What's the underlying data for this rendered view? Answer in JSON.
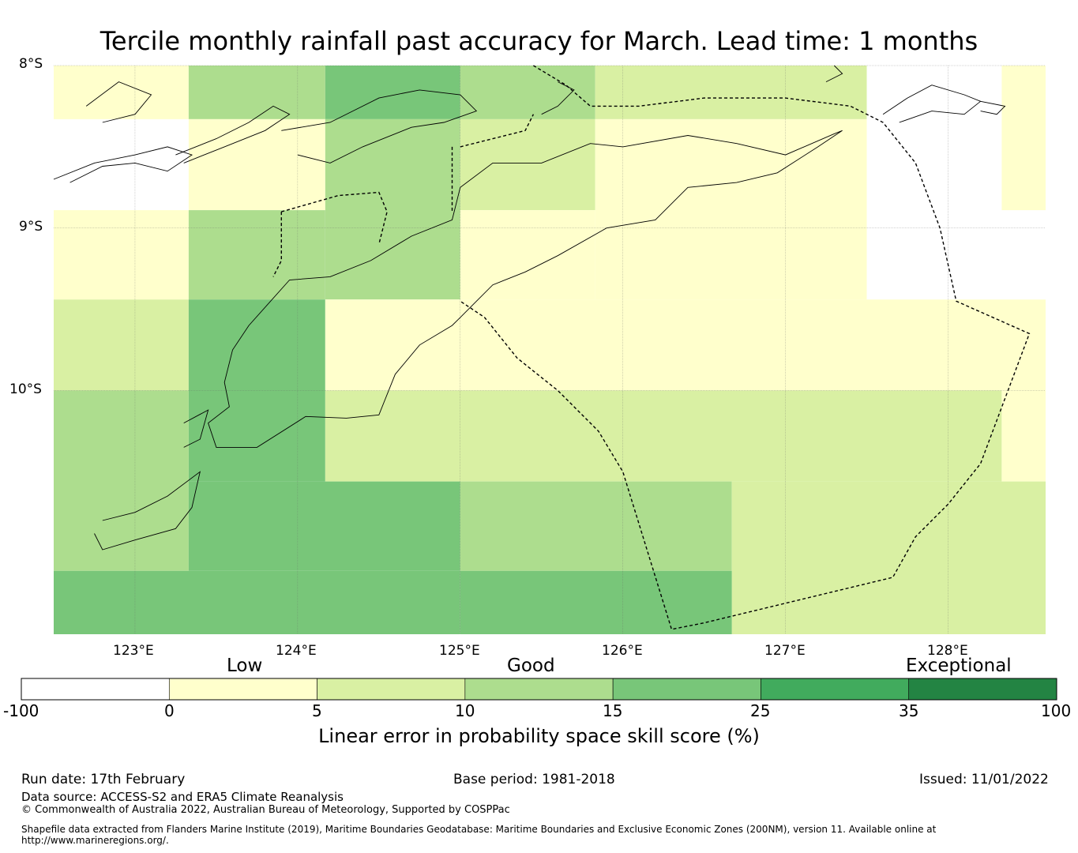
{
  "title": "Tercile monthly rainfall past accuracy for March. Lead time: 1 months",
  "map": {
    "lat_labels": [
      "8°S",
      "9°S",
      "10°S"
    ],
    "lon_labels": [
      "123°E",
      "124°E",
      "125°E",
      "126°E",
      "127°E",
      "128°E"
    ],
    "extent": {
      "lon": [
        122.5,
        128.6
      ],
      "lat": [
        -11.5,
        -8.0
      ]
    },
    "grid_lons": [
      123,
      124,
      125,
      126,
      127,
      128
    ],
    "grid_lats": [
      -8,
      -9,
      -10
    ],
    "skill_cells": [
      {
        "lon": [
          122.5,
          123.33
        ],
        "lat": [
          -8.33,
          -8.0
        ],
        "score": 2
      },
      {
        "lon": [
          123.33,
          124.17
        ],
        "lat": [
          -8.33,
          -8.0
        ],
        "score": 12
      },
      {
        "lon": [
          124.17,
          125.0
        ],
        "lat": [
          -8.33,
          -8.0
        ],
        "score": 18
      },
      {
        "lon": [
          125.0,
          125.83
        ],
        "lat": [
          -8.33,
          -8.0
        ],
        "score": 12
      },
      {
        "lon": [
          125.83,
          127.5
        ],
        "lat": [
          -8.33,
          -8.0
        ],
        "score": 7
      },
      {
        "lon": [
          128.33,
          128.6
        ],
        "lat": [
          -8.89,
          -8.0
        ],
        "score": 2
      },
      {
        "lon": [
          123.33,
          124.17
        ],
        "lat": [
          -8.89,
          -8.33
        ],
        "score": 2
      },
      {
        "lon": [
          124.17,
          125.0
        ],
        "lat": [
          -9.44,
          -8.33
        ],
        "score": 12
      },
      {
        "lon": [
          125.0,
          125.83
        ],
        "lat": [
          -8.89,
          -8.33
        ],
        "score": 7
      },
      {
        "lon": [
          125.83,
          127.5
        ],
        "lat": [
          -9.44,
          -8.33
        ],
        "score": 2
      },
      {
        "lon": [
          122.5,
          123.33
        ],
        "lat": [
          -9.44,
          -8.89
        ],
        "score": 2
      },
      {
        "lon": [
          123.33,
          124.17
        ],
        "lat": [
          -9.44,
          -8.89
        ],
        "score": 12
      },
      {
        "lon": [
          125.0,
          125.83
        ],
        "lat": [
          -9.44,
          -8.89
        ],
        "score": 2
      },
      {
        "lon": [
          122.5,
          123.33
        ],
        "lat": [
          -10.0,
          -9.44
        ],
        "score": 7
      },
      {
        "lon": [
          123.33,
          124.17
        ],
        "lat": [
          -10.56,
          -9.44
        ],
        "score": 18
      },
      {
        "lon": [
          124.17,
          128.6
        ],
        "lat": [
          -10.0,
          -9.44
        ],
        "score": 2
      },
      {
        "lon": [
          122.5,
          123.33
        ],
        "lat": [
          -11.11,
          -10.0
        ],
        "score": 12
      },
      {
        "lon": [
          124.17,
          128.33
        ],
        "lat": [
          -10.56,
          -10.0
        ],
        "score": 7
      },
      {
        "lon": [
          128.33,
          128.6
        ],
        "lat": [
          -10.56,
          -10.0
        ],
        "score": 2
      },
      {
        "lon": [
          123.33,
          125.0
        ],
        "lat": [
          -11.11,
          -10.56
        ],
        "score": 18
      },
      {
        "lon": [
          125.0,
          126.67
        ],
        "lat": [
          -11.11,
          -10.56
        ],
        "score": 12
      },
      {
        "lon": [
          126.67,
          128.6
        ],
        "lat": [
          -11.5,
          -10.56
        ],
        "score": 7
      },
      {
        "lon": [
          122.5,
          125.0
        ],
        "lat": [
          -11.5,
          -11.11
        ],
        "score": 18
      },
      {
        "lon": [
          125.0,
          126.67
        ],
        "lat": [
          -11.5,
          -11.11
        ],
        "score": 18
      }
    ],
    "coastlines": [
      [
        [
          123.9,
          -8.4
        ],
        [
          124.2,
          -8.35
        ],
        [
          124.5,
          -8.2
        ],
        [
          124.75,
          -8.15
        ],
        [
          125.0,
          -8.18
        ],
        [
          125.1,
          -8.28
        ],
        [
          124.9,
          -8.35
        ],
        [
          124.7,
          -8.38
        ],
        [
          124.4,
          -8.5
        ],
        [
          124.2,
          -8.6
        ],
        [
          124.0,
          -8.55
        ]
      ],
      [
        [
          122.5,
          -8.7
        ],
        [
          122.75,
          -8.6
        ],
        [
          123.0,
          -8.55
        ],
        [
          123.2,
          -8.5
        ],
        [
          123.35,
          -8.55
        ],
        [
          123.2,
          -8.65
        ],
        [
          123.0,
          -8.6
        ],
        [
          122.8,
          -8.62
        ],
        [
          122.6,
          -8.72
        ]
      ],
      [
        [
          122.7,
          -8.25
        ],
        [
          122.9,
          -8.1
        ],
        [
          123.1,
          -8.18
        ],
        [
          123.0,
          -8.3
        ],
        [
          122.8,
          -8.35
        ]
      ],
      [
        [
          123.25,
          -8.55
        ],
        [
          123.5,
          -8.45
        ],
        [
          123.7,
          -8.35
        ],
        [
          123.85,
          -8.25
        ],
        [
          123.95,
          -8.3
        ],
        [
          123.8,
          -8.4
        ],
        [
          123.55,
          -8.5
        ],
        [
          123.3,
          -8.6
        ]
      ],
      [
        [
          124.05,
          -10.16
        ],
        [
          124.3,
          -10.17
        ],
        [
          124.5,
          -10.15
        ],
        [
          124.6,
          -9.9
        ],
        [
          124.75,
          -9.72
        ],
        [
          124.95,
          -9.6
        ],
        [
          125.0,
          -9.55
        ],
        [
          125.2,
          -9.35
        ],
        [
          125.4,
          -9.27
        ],
        [
          125.6,
          -9.17
        ],
        [
          125.9,
          -9.0
        ],
        [
          126.2,
          -8.95
        ],
        [
          126.4,
          -8.75
        ],
        [
          126.7,
          -8.72
        ],
        [
          126.95,
          -8.66
        ],
        [
          127.2,
          -8.5
        ],
        [
          127.35,
          -8.4
        ],
        [
          127.3,
          -8.42
        ],
        [
          127.0,
          -8.55
        ],
        [
          126.7,
          -8.48
        ],
        [
          126.4,
          -8.43
        ],
        [
          126.0,
          -8.5
        ],
        [
          125.8,
          -8.48
        ],
        [
          125.5,
          -8.6
        ],
        [
          125.2,
          -8.6
        ],
        [
          125.0,
          -8.75
        ],
        [
          124.95,
          -8.95
        ],
        [
          124.7,
          -9.05
        ],
        [
          124.45,
          -9.2
        ],
        [
          124.2,
          -9.3
        ],
        [
          123.95,
          -9.32
        ],
        [
          123.7,
          -9.6
        ],
        [
          123.6,
          -9.75
        ],
        [
          123.55,
          -9.95
        ],
        [
          123.58,
          -10.1
        ],
        [
          123.45,
          -10.2
        ],
        [
          123.5,
          -10.35
        ],
        [
          123.75,
          -10.35
        ],
        [
          124.05,
          -10.16
        ]
      ],
      [
        [
          122.8,
          -10.8
        ],
        [
          123.0,
          -10.75
        ],
        [
          123.2,
          -10.65
        ],
        [
          123.4,
          -10.5
        ],
        [
          123.35,
          -10.72
        ],
        [
          123.25,
          -10.85
        ],
        [
          123.0,
          -10.92
        ],
        [
          122.8,
          -10.98
        ],
        [
          122.75,
          -10.88
        ]
      ],
      [
        [
          123.3,
          -10.2
        ],
        [
          123.45,
          -10.12
        ],
        [
          123.4,
          -10.3
        ],
        [
          123.3,
          -10.35
        ]
      ],
      [
        [
          127.3,
          -8.0
        ],
        [
          127.35,
          -8.05
        ],
        [
          127.25,
          -8.1
        ]
      ],
      [
        [
          127.6,
          -8.3
        ],
        [
          127.75,
          -8.2
        ],
        [
          127.9,
          -8.12
        ],
        [
          128.1,
          -8.18
        ],
        [
          128.2,
          -8.22
        ],
        [
          128.1,
          -8.3
        ],
        [
          127.9,
          -8.28
        ],
        [
          127.7,
          -8.35
        ]
      ],
      [
        [
          128.2,
          -8.22
        ],
        [
          128.35,
          -8.25
        ],
        [
          128.3,
          -8.3
        ],
        [
          128.2,
          -8.28
        ]
      ],
      [
        [
          125.6,
          -8.1
        ],
        [
          125.7,
          -8.15
        ],
        [
          125.6,
          -8.25
        ],
        [
          125.5,
          -8.3
        ]
      ]
    ],
    "eez_boundaries": [
      [
        [
          125.45,
          -8.0
        ],
        [
          125.65,
          -8.12
        ],
        [
          125.8,
          -8.25
        ],
        [
          126.1,
          -8.25
        ],
        [
          126.5,
          -8.2
        ],
        [
          127.0,
          -8.2
        ],
        [
          127.4,
          -8.25
        ],
        [
          127.6,
          -8.35
        ],
        [
          127.8,
          -8.6
        ],
        [
          127.95,
          -9.0
        ],
        [
          128.05,
          -9.45
        ],
        [
          128.5,
          -9.65
        ],
        [
          128.2,
          -10.45
        ],
        [
          128.0,
          -10.7
        ],
        [
          127.8,
          -10.9
        ],
        [
          127.66,
          -11.15
        ],
        [
          126.5,
          -11.43
        ],
        [
          126.3,
          -11.47
        ],
        [
          126.0,
          -10.5
        ],
        [
          125.85,
          -10.25
        ],
        [
          125.6,
          -10.0
        ],
        [
          125.35,
          -9.8
        ],
        [
          125.15,
          -9.55
        ],
        [
          125.0,
          -9.45
        ]
      ],
      [
        [
          125.0,
          -8.5
        ],
        [
          125.4,
          -8.4
        ],
        [
          125.45,
          -8.3
        ]
      ],
      [
        [
          123.9,
          -8.9
        ],
        [
          124.25,
          -8.8
        ],
        [
          124.5,
          -8.78
        ],
        [
          124.55,
          -8.9
        ],
        [
          124.5,
          -9.1
        ]
      ],
      [
        [
          123.9,
          -8.9
        ],
        [
          123.9,
          -9.2
        ],
        [
          123.85,
          -9.3
        ]
      ],
      [
        [
          124.95,
          -8.5
        ],
        [
          124.95,
          -8.9
        ]
      ]
    ]
  },
  "colorbar": {
    "categories": [
      "Low",
      "Good",
      "Exceptional"
    ],
    "ticks": [
      "-100",
      "0",
      "5",
      "10",
      "15",
      "25",
      "35",
      "100"
    ],
    "colors": [
      "#ffffff",
      "#ffffcc",
      "#d9f0a3",
      "#addd8e",
      "#78c679",
      "#41ab5d",
      "#238443"
    ],
    "label": "Linear error in probability space skill score (%)"
  },
  "footer": {
    "run_date": "Run date: 17th February",
    "base_period": "Base period: 1981-2018",
    "issued": "Issued: 11/01/2022",
    "data_source": "Data source: ACCESS-S2 and ERA5 Climate Reanalysis",
    "copyright": "© Commonwealth of Australia 2022, Australian Bureau of Meteorology, Supported by COSPPac",
    "shapefile_line1": "Shapefile data extracted from Flanders Marine Institute (2019), Maritime Boundaries Geodatabase: Maritime Boundaries and Exclusive Economic Zones (200NM), version 11. Available online at",
    "shapefile_line2": "http://www.marineregions.org/."
  }
}
